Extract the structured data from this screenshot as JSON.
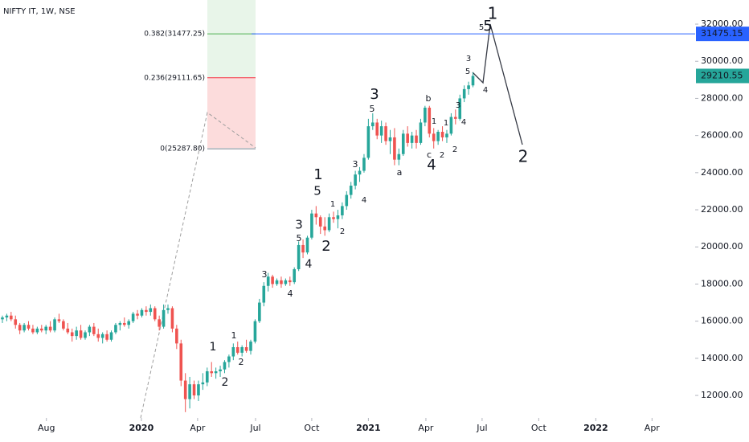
{
  "chart_data": {
    "type": "candlestick",
    "title": "NIFTY IT, 1W, NSE",
    "up_color": "#26a69a",
    "down_color": "#ef5350",
    "values": [
      [
        16100,
        16300,
        15900,
        16200
      ],
      [
        16200,
        16400,
        16000,
        16300
      ],
      [
        16300,
        16500,
        16000,
        16100
      ],
      [
        16100,
        16300,
        15600,
        15800
      ],
      [
        15800,
        15900,
        15300,
        15500
      ],
      [
        15500,
        15900,
        15400,
        15800
      ],
      [
        15800,
        16000,
        15500,
        15600
      ],
      [
        15600,
        15800,
        15300,
        15400
      ],
      [
        15400,
        15700,
        15300,
        15600
      ],
      [
        15600,
        15800,
        15400,
        15500
      ],
      [
        15500,
        15800,
        15300,
        15700
      ],
      [
        15700,
        16000,
        15400,
        15500
      ],
      [
        15500,
        16200,
        15400,
        16100
      ],
      [
        16100,
        16400,
        15900,
        16000
      ],
      [
        16000,
        16100,
        15500,
        15600
      ],
      [
        15600,
        15900,
        15300,
        15400
      ],
      [
        15400,
        15600,
        14900,
        15200
      ],
      [
        15200,
        15700,
        15000,
        15500
      ],
      [
        15500,
        15800,
        15000,
        15100
      ],
      [
        15100,
        15500,
        15000,
        15400
      ],
      [
        15400,
        15800,
        15200,
        15700
      ],
      [
        15700,
        15900,
        15200,
        15300
      ],
      [
        15300,
        15600,
        14900,
        15100
      ],
      [
        15100,
        15400,
        14800,
        15300
      ],
      [
        15300,
        15500,
        14900,
        15000
      ],
      [
        15000,
        15500,
        14900,
        15400
      ],
      [
        15400,
        15900,
        15300,
        15800
      ],
      [
        15800,
        16000,
        15500,
        15900
      ],
      [
        15900,
        16200,
        15700,
        15800
      ],
      [
        15800,
        16100,
        15600,
        16000
      ],
      [
        16000,
        16500,
        15900,
        16400
      ],
      [
        16400,
        16600,
        16100,
        16300
      ],
      [
        16300,
        16700,
        16200,
        16600
      ],
      [
        16600,
        16800,
        16300,
        16500
      ],
      [
        16500,
        16900,
        16300,
        16700
      ],
      [
        16700,
        16800,
        16000,
        16100
      ],
      [
        16100,
        16300,
        15500,
        15700
      ],
      [
        15700,
        16900,
        15600,
        16600
      ],
      [
        16600,
        16900,
        16400,
        16700
      ],
      [
        16700,
        16800,
        15400,
        15600
      ],
      [
        15600,
        15800,
        14500,
        14800
      ],
      [
        14800,
        15000,
        12500,
        12800
      ],
      [
        12800,
        13200,
        11100,
        11800
      ],
      [
        11800,
        13000,
        11300,
        12600
      ],
      [
        12600,
        12800,
        11800,
        12000
      ],
      [
        12000,
        12800,
        11700,
        12600
      ],
      [
        12600,
        13200,
        12300,
        12700
      ],
      [
        12700,
        13500,
        12500,
        13300
      ],
      [
        13300,
        13800,
        13000,
        13200
      ],
      [
        13200,
        13500,
        12900,
        13300
      ],
      [
        13300,
        13600,
        13000,
        13400
      ],
      [
        13400,
        13900,
        13200,
        13800
      ],
      [
        13800,
        14200,
        13500,
        14100
      ],
      [
        14100,
        14800,
        13900,
        14600
      ],
      [
        14600,
        14900,
        14200,
        14300
      ],
      [
        14300,
        14700,
        14100,
        14600
      ],
      [
        14600,
        15000,
        14300,
        14400
      ],
      [
        14400,
        15000,
        14200,
        14900
      ],
      [
        14900,
        16100,
        14800,
        16000
      ],
      [
        16000,
        17200,
        15900,
        17000
      ],
      [
        17000,
        18100,
        16800,
        17900
      ],
      [
        17900,
        18600,
        17600,
        18400
      ],
      [
        18400,
        18500,
        17800,
        18000
      ],
      [
        18000,
        18300,
        17900,
        18200
      ],
      [
        18200,
        18400,
        17800,
        18000
      ],
      [
        18000,
        18300,
        17900,
        18200
      ],
      [
        18200,
        18400,
        17900,
        18100
      ],
      [
        18100,
        18900,
        18000,
        18800
      ],
      [
        18800,
        20300,
        18700,
        20100
      ],
      [
        20100,
        20400,
        19400,
        19700
      ],
      [
        19700,
        20600,
        19600,
        20500
      ],
      [
        20500,
        22000,
        20400,
        21800
      ],
      [
        21800,
        22200,
        21200,
        21600
      ],
      [
        21600,
        21700,
        20700,
        21100
      ],
      [
        21100,
        21600,
        20600,
        20900
      ],
      [
        20900,
        21800,
        20800,
        21600
      ],
      [
        21600,
        21900,
        21300,
        21500
      ],
      [
        21500,
        22000,
        21000,
        21700
      ],
      [
        21700,
        22400,
        21500,
        22200
      ],
      [
        22200,
        23000,
        22000,
        22800
      ],
      [
        22800,
        23500,
        22600,
        23300
      ],
      [
        23300,
        24100,
        23100,
        23900
      ],
      [
        23900,
        24300,
        23500,
        24100
      ],
      [
        24100,
        25000,
        24000,
        24800
      ],
      [
        24800,
        26900,
        24700,
        26500
      ],
      [
        26500,
        27200,
        26300,
        26700
      ],
      [
        26700,
        26900,
        25800,
        26000
      ],
      [
        26000,
        26800,
        25600,
        26500
      ],
      [
        26500,
        26700,
        25500,
        25700
      ],
      [
        25700,
        26300,
        25000,
        25900
      ],
      [
        25900,
        26400,
        24400,
        24700
      ],
      [
        24700,
        25300,
        24400,
        25000
      ],
      [
        25000,
        26300,
        24900,
        26100
      ],
      [
        26100,
        26500,
        25400,
        25600
      ],
      [
        25600,
        26200,
        25300,
        26000
      ],
      [
        26000,
        26300,
        25300,
        25600
      ],
      [
        25600,
        26900,
        25500,
        26700
      ],
      [
        26700,
        27600,
        26500,
        27500
      ],
      [
        27500,
        27600,
        25900,
        26100
      ],
      [
        26100,
        26400,
        25300,
        25700
      ],
      [
        25700,
        26300,
        25500,
        26200
      ],
      [
        26200,
        26500,
        25700,
        25900
      ],
      [
        25900,
        26300,
        25600,
        26100
      ],
      [
        26100,
        27200,
        26000,
        27000
      ],
      [
        27000,
        27400,
        26600,
        26900
      ],
      [
        26900,
        28200,
        26800,
        28000
      ],
      [
        28000,
        28700,
        27800,
        28500
      ],
      [
        28500,
        28900,
        28200,
        28700
      ],
      [
        28700,
        29400,
        28600,
        29210.55
      ]
    ],
    "xlim": [
      -0.55,
      159
    ],
    "ylim": [
      10790,
      33300
    ],
    "xticks": [
      {
        "value": 10.1,
        "label": "Aug"
      },
      {
        "value": 31.9,
        "label": "2020"
      },
      {
        "value": 44.8,
        "label": "Apr"
      },
      {
        "value": 58.1,
        "label": "Jul"
      },
      {
        "value": 71.0,
        "label": "Oct"
      },
      {
        "value": 84.0,
        "label": "2021"
      },
      {
        "value": 97.2,
        "label": "Apr"
      },
      {
        "value": 110.1,
        "label": "Jul"
      },
      {
        "value": 123.1,
        "label": "Oct"
      },
      {
        "value": 136.2,
        "label": "2022"
      },
      {
        "value": 149.1,
        "label": "Apr"
      }
    ],
    "yticks": [
      {
        "value": 12000,
        "label": "12000.00"
      },
      {
        "value": 14000,
        "label": "14000.00"
      },
      {
        "value": 16000,
        "label": "16000.00"
      },
      {
        "value": 18000,
        "label": "18000.00"
      },
      {
        "value": 20000,
        "label": "20000.00"
      },
      {
        "value": 22000,
        "label": "22000.00"
      },
      {
        "value": 24000,
        "label": "24000.00"
      },
      {
        "value": 26000,
        "label": "26000.00"
      },
      {
        "value": 28000,
        "label": "28000.00"
      },
      {
        "value": 30000,
        "label": "30000.00"
      },
      {
        "value": 32000,
        "label": "32000.00"
      }
    ],
    "grid": false,
    "hline": {
      "value": 31475.15,
      "color": "#2962ff"
    },
    "fib": [
      {
        "value": 31477.25,
        "label": "0.382(31477.25)",
        "color": "#4caf50"
      },
      {
        "value": 29111.65,
        "label": "0.236(29111.65)",
        "color": "#f23645"
      },
      {
        "value": 25287.8,
        "label": "0(25287.80)",
        "color": "#787b86"
      }
    ],
    "annotations": [
      "1",
      "2",
      "1",
      "2",
      "3",
      "4",
      "3",
      "5",
      "4",
      "5",
      "1",
      "2",
      "1",
      "2",
      "3",
      "4",
      "5",
      "3",
      "a",
      "b",
      "1",
      "c",
      "4",
      "2",
      "1",
      "2",
      "3",
      "4",
      "5",
      "3",
      "4",
      "5",
      "5",
      "1",
      "2"
    ]
  }
}
